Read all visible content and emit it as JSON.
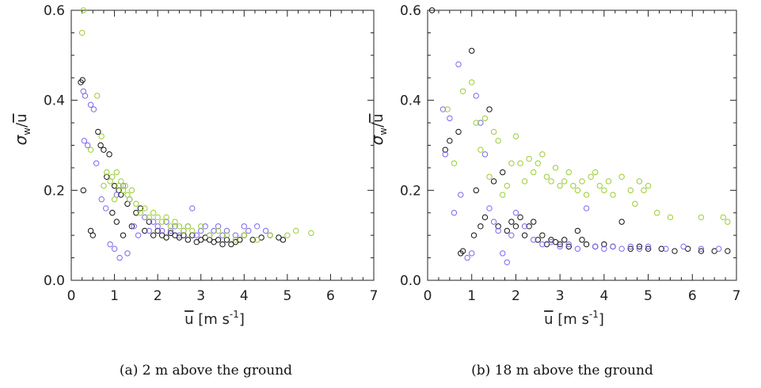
{
  "chart_data": [
    {
      "type": "scatter",
      "panel": "a",
      "caption": "(a) 2 m above the ground",
      "xlabel": "u [m s^-1]",
      "ylabel": "σw/u",
      "xlim": [
        0,
        7
      ],
      "ylim": [
        0,
        0.6
      ],
      "xticks": [
        "0",
        "1",
        "2",
        "3",
        "4",
        "5",
        "6",
        "7"
      ],
      "yticks": [
        "0.0",
        "0.2",
        "0.4",
        "0.6"
      ],
      "grid": false,
      "colors": {
        "black": "#111111",
        "purple": "#7b68ee",
        "green": "#9acd32"
      },
      "series": [
        {
          "color": "black",
          "points": [
            [
              0.22,
              0.44
            ],
            [
              0.26,
              0.445
            ],
            [
              0.28,
              0.2
            ],
            [
              0.45,
              0.11
            ],
            [
              0.5,
              0.1
            ],
            [
              0.62,
              0.33
            ],
            [
              0.68,
              0.3
            ],
            [
              0.75,
              0.29
            ],
            [
              0.82,
              0.23
            ],
            [
              0.88,
              0.28
            ],
            [
              0.95,
              0.15
            ],
            [
              1.0,
              0.21
            ],
            [
              1.05,
              0.13
            ],
            [
              1.1,
              0.2
            ],
            [
              1.15,
              0.19
            ],
            [
              1.2,
              0.1
            ],
            [
              1.3,
              0.17
            ],
            [
              1.4,
              0.12
            ],
            [
              1.5,
              0.15
            ],
            [
              1.6,
              0.16
            ],
            [
              1.7,
              0.11
            ],
            [
              1.8,
              0.13
            ],
            [
              1.9,
              0.1
            ],
            [
              2.0,
              0.11
            ],
            [
              2.1,
              0.1
            ],
            [
              2.2,
              0.095
            ],
            [
              2.3,
              0.105
            ],
            [
              2.4,
              0.1
            ],
            [
              2.5,
              0.095
            ],
            [
              2.6,
              0.1
            ],
            [
              2.7,
              0.09
            ],
            [
              2.8,
              0.1
            ],
            [
              2.9,
              0.085
            ],
            [
              3.0,
              0.09
            ],
            [
              3.1,
              0.095
            ],
            [
              3.2,
              0.09
            ],
            [
              3.3,
              0.085
            ],
            [
              3.4,
              0.09
            ],
            [
              3.5,
              0.08
            ],
            [
              3.6,
              0.09
            ],
            [
              3.7,
              0.08
            ],
            [
              3.8,
              0.085
            ],
            [
              3.9,
              0.09
            ],
            [
              4.0,
              0.1
            ],
            [
              4.2,
              0.09
            ],
            [
              4.4,
              0.095
            ],
            [
              4.6,
              0.1
            ],
            [
              4.8,
              0.095
            ],
            [
              4.9,
              0.09
            ]
          ]
        },
        {
          "color": "purple",
          "points": [
            [
              0.28,
              0.42
            ],
            [
              0.32,
              0.41
            ],
            [
              0.3,
              0.31
            ],
            [
              0.38,
              0.3
            ],
            [
              0.45,
              0.39
            ],
            [
              0.52,
              0.38
            ],
            [
              0.58,
              0.26
            ],
            [
              0.7,
              0.18
            ],
            [
              0.8,
              0.16
            ],
            [
              0.9,
              0.08
            ],
            [
              1.0,
              0.07
            ],
            [
              1.05,
              0.19
            ],
            [
              1.12,
              0.05
            ],
            [
              1.2,
              0.21
            ],
            [
              1.3,
              0.06
            ],
            [
              1.35,
              0.18
            ],
            [
              1.45,
              0.12
            ],
            [
              1.55,
              0.1
            ],
            [
              1.7,
              0.14
            ],
            [
              1.8,
              0.11
            ],
            [
              1.9,
              0.13
            ],
            [
              2.0,
              0.12
            ],
            [
              2.1,
              0.11
            ],
            [
              2.2,
              0.13
            ],
            [
              2.3,
              0.11
            ],
            [
              2.4,
              0.12
            ],
            [
              2.5,
              0.1
            ],
            [
              2.6,
              0.11
            ],
            [
              2.7,
              0.12
            ],
            [
              2.8,
              0.16
            ],
            [
              2.9,
              0.1
            ],
            [
              3.0,
              0.11
            ],
            [
              3.1,
              0.12
            ],
            [
              3.2,
              0.1
            ],
            [
              3.3,
              0.11
            ],
            [
              3.4,
              0.12
            ],
            [
              3.5,
              0.1
            ],
            [
              3.6,
              0.11
            ],
            [
              3.8,
              0.1
            ],
            [
              4.0,
              0.12
            ],
            [
              4.1,
              0.11
            ],
            [
              4.3,
              0.12
            ],
            [
              4.5,
              0.11
            ]
          ]
        },
        {
          "color": "green",
          "points": [
            [
              0.28,
              0.6
            ],
            [
              0.25,
              0.55
            ],
            [
              0.45,
              0.29
            ],
            [
              0.6,
              0.41
            ],
            [
              0.7,
              0.32
            ],
            [
              0.75,
              0.21
            ],
            [
              0.82,
              0.24
            ],
            [
              0.9,
              0.22
            ],
            [
              0.95,
              0.23
            ],
            [
              1.0,
              0.18
            ],
            [
              1.05,
              0.24
            ],
            [
              1.1,
              0.21
            ],
            [
              1.15,
              0.22
            ],
            [
              1.2,
              0.2
            ],
            [
              1.25,
              0.21
            ],
            [
              1.3,
              0.19
            ],
            [
              1.35,
              0.18
            ],
            [
              1.4,
              0.2
            ],
            [
              1.5,
              0.17
            ],
            [
              1.6,
              0.15
            ],
            [
              1.7,
              0.16
            ],
            [
              1.8,
              0.14
            ],
            [
              1.9,
              0.15
            ],
            [
              2.0,
              0.14
            ],
            [
              2.1,
              0.13
            ],
            [
              2.2,
              0.14
            ],
            [
              2.3,
              0.12
            ],
            [
              2.4,
              0.13
            ],
            [
              2.5,
              0.12
            ],
            [
              2.6,
              0.11
            ],
            [
              2.7,
              0.12
            ],
            [
              2.8,
              0.11
            ],
            [
              3.0,
              0.12
            ],
            [
              3.2,
              0.1
            ],
            [
              3.4,
              0.11
            ],
            [
              3.6,
              0.1
            ],
            [
              3.8,
              0.09
            ],
            [
              4.0,
              0.1
            ],
            [
              4.3,
              0.09
            ],
            [
              4.6,
              0.1
            ],
            [
              5.0,
              0.1
            ],
            [
              5.2,
              0.11
            ],
            [
              5.55,
              0.105
            ]
          ]
        }
      ]
    },
    {
      "type": "scatter",
      "panel": "b",
      "caption": "(b) 18 m above the ground",
      "xlabel": "u [m s^-1]",
      "ylabel": "σw/u",
      "xlim": [
        0,
        7
      ],
      "ylim": [
        0,
        0.6
      ],
      "xticks": [
        "0",
        "1",
        "2",
        "3",
        "4",
        "5",
        "6",
        "7"
      ],
      "yticks": [
        "0.0",
        "0.2",
        "0.4",
        "0.6"
      ],
      "grid": false,
      "colors": {
        "black": "#111111",
        "purple": "#7b68ee",
        "green": "#9acd32"
      },
      "series": [
        {
          "color": "black",
          "points": [
            [
              0.1,
              0.6
            ],
            [
              0.4,
              0.29
            ],
            [
              0.5,
              0.31
            ],
            [
              0.7,
              0.33
            ],
            [
              0.75,
              0.06
            ],
            [
              0.8,
              0.065
            ],
            [
              1.0,
              0.51
            ],
            [
              1.05,
              0.1
            ],
            [
              1.1,
              0.2
            ],
            [
              1.2,
              0.12
            ],
            [
              1.3,
              0.14
            ],
            [
              1.4,
              0.38
            ],
            [
              1.5,
              0.22
            ],
            [
              1.6,
              0.12
            ],
            [
              1.7,
              0.24
            ],
            [
              1.8,
              0.11
            ],
            [
              1.9,
              0.13
            ],
            [
              2.0,
              0.12
            ],
            [
              2.1,
              0.14
            ],
            [
              2.2,
              0.1
            ],
            [
              2.3,
              0.12
            ],
            [
              2.4,
              0.13
            ],
            [
              2.5,
              0.09
            ],
            [
              2.6,
              0.1
            ],
            [
              2.7,
              0.08
            ],
            [
              2.8,
              0.09
            ],
            [
              2.9,
              0.085
            ],
            [
              3.0,
              0.08
            ],
            [
              3.1,
              0.09
            ],
            [
              3.2,
              0.075
            ],
            [
              3.4,
              0.11
            ],
            [
              3.5,
              0.09
            ],
            [
              3.6,
              0.08
            ],
            [
              3.8,
              0.075
            ],
            [
              4.0,
              0.08
            ],
            [
              4.2,
              0.075
            ],
            [
              4.4,
              0.13
            ],
            [
              4.6,
              0.07
            ],
            [
              4.8,
              0.075
            ],
            [
              5.0,
              0.07
            ],
            [
              5.3,
              0.07
            ],
            [
              5.6,
              0.065
            ],
            [
              5.9,
              0.07
            ],
            [
              6.2,
              0.065
            ],
            [
              6.5,
              0.065
            ],
            [
              6.8,
              0.065
            ]
          ]
        },
        {
          "color": "purple",
          "points": [
            [
              0.35,
              0.38
            ],
            [
              0.4,
              0.28
            ],
            [
              0.5,
              0.36
            ],
            [
              0.6,
              0.15
            ],
            [
              0.7,
              0.48
            ],
            [
              0.75,
              0.19
            ],
            [
              0.9,
              0.05
            ],
            [
              1.0,
              0.06
            ],
            [
              1.1,
              0.41
            ],
            [
              1.2,
              0.35
            ],
            [
              1.3,
              0.28
            ],
            [
              1.4,
              0.16
            ],
            [
              1.5,
              0.13
            ],
            [
              1.6,
              0.11
            ],
            [
              1.7,
              0.06
            ],
            [
              1.8,
              0.04
            ],
            [
              1.9,
              0.1
            ],
            [
              2.0,
              0.15
            ],
            [
              2.2,
              0.12
            ],
            [
              2.4,
              0.09
            ],
            [
              2.6,
              0.08
            ],
            [
              2.8,
              0.085
            ],
            [
              3.0,
              0.075
            ],
            [
              3.2,
              0.08
            ],
            [
              3.4,
              0.07
            ],
            [
              3.6,
              0.16
            ],
            [
              3.8,
              0.075
            ],
            [
              4.0,
              0.07
            ],
            [
              4.2,
              0.075
            ],
            [
              4.4,
              0.07
            ],
            [
              4.6,
              0.075
            ],
            [
              4.8,
              0.07
            ],
            [
              5.0,
              0.075
            ],
            [
              5.4,
              0.07
            ],
            [
              5.8,
              0.075
            ],
            [
              6.2,
              0.07
            ],
            [
              6.6,
              0.07
            ]
          ]
        },
        {
          "color": "green",
          "points": [
            [
              0.45,
              0.38
            ],
            [
              0.6,
              0.26
            ],
            [
              0.8,
              0.42
            ],
            [
              1.0,
              0.44
            ],
            [
              1.1,
              0.35
            ],
            [
              1.2,
              0.29
            ],
            [
              1.3,
              0.36
            ],
            [
              1.4,
              0.23
            ],
            [
              1.5,
              0.33
            ],
            [
              1.6,
              0.31
            ],
            [
              1.7,
              0.19
            ],
            [
              1.8,
              0.21
            ],
            [
              1.9,
              0.26
            ],
            [
              2.0,
              0.32
            ],
            [
              2.1,
              0.26
            ],
            [
              2.2,
              0.22
            ],
            [
              2.3,
              0.27
            ],
            [
              2.4,
              0.24
            ],
            [
              2.5,
              0.26
            ],
            [
              2.6,
              0.28
            ],
            [
              2.7,
              0.23
            ],
            [
              2.8,
              0.22
            ],
            [
              2.9,
              0.25
            ],
            [
              3.0,
              0.21
            ],
            [
              3.1,
              0.22
            ],
            [
              3.2,
              0.24
            ],
            [
              3.3,
              0.21
            ],
            [
              3.4,
              0.2
            ],
            [
              3.5,
              0.22
            ],
            [
              3.6,
              0.19
            ],
            [
              3.7,
              0.23
            ],
            [
              3.8,
              0.24
            ],
            [
              3.9,
              0.21
            ],
            [
              4.0,
              0.2
            ],
            [
              4.1,
              0.22
            ],
            [
              4.2,
              0.19
            ],
            [
              4.4,
              0.23
            ],
            [
              4.6,
              0.2
            ],
            [
              4.7,
              0.17
            ],
            [
              4.8,
              0.22
            ],
            [
              4.9,
              0.2
            ],
            [
              5.0,
              0.21
            ],
            [
              5.2,
              0.15
            ],
            [
              5.5,
              0.14
            ],
            [
              6.2,
              0.14
            ],
            [
              6.7,
              0.14
            ],
            [
              6.8,
              0.13
            ]
          ]
        }
      ]
    }
  ]
}
